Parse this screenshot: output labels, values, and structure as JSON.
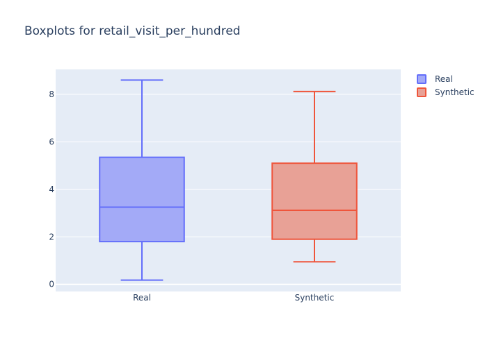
{
  "chart_data": {
    "type": "box",
    "title": "Boxplots for retail_visit_per_hundred",
    "xlabel": "",
    "ylabel": "",
    "categories": [
      "Real",
      "Synthetic"
    ],
    "ylim": [
      -0.3,
      9.05
    ],
    "yticks": [
      0,
      2,
      4,
      6,
      8
    ],
    "grid": true,
    "legend_position": "top-right",
    "series": [
      {
        "name": "Real",
        "color": "#636efa",
        "fill": "#a3aaf7",
        "min": 0.18,
        "q1": 1.8,
        "median": 3.25,
        "q3": 5.35,
        "max": 8.6
      },
      {
        "name": "Synthetic",
        "color": "#ef553b",
        "fill": "#e8a196",
        "min": 0.95,
        "q1": 1.9,
        "median": 3.12,
        "q3": 5.1,
        "max": 8.12
      }
    ]
  }
}
